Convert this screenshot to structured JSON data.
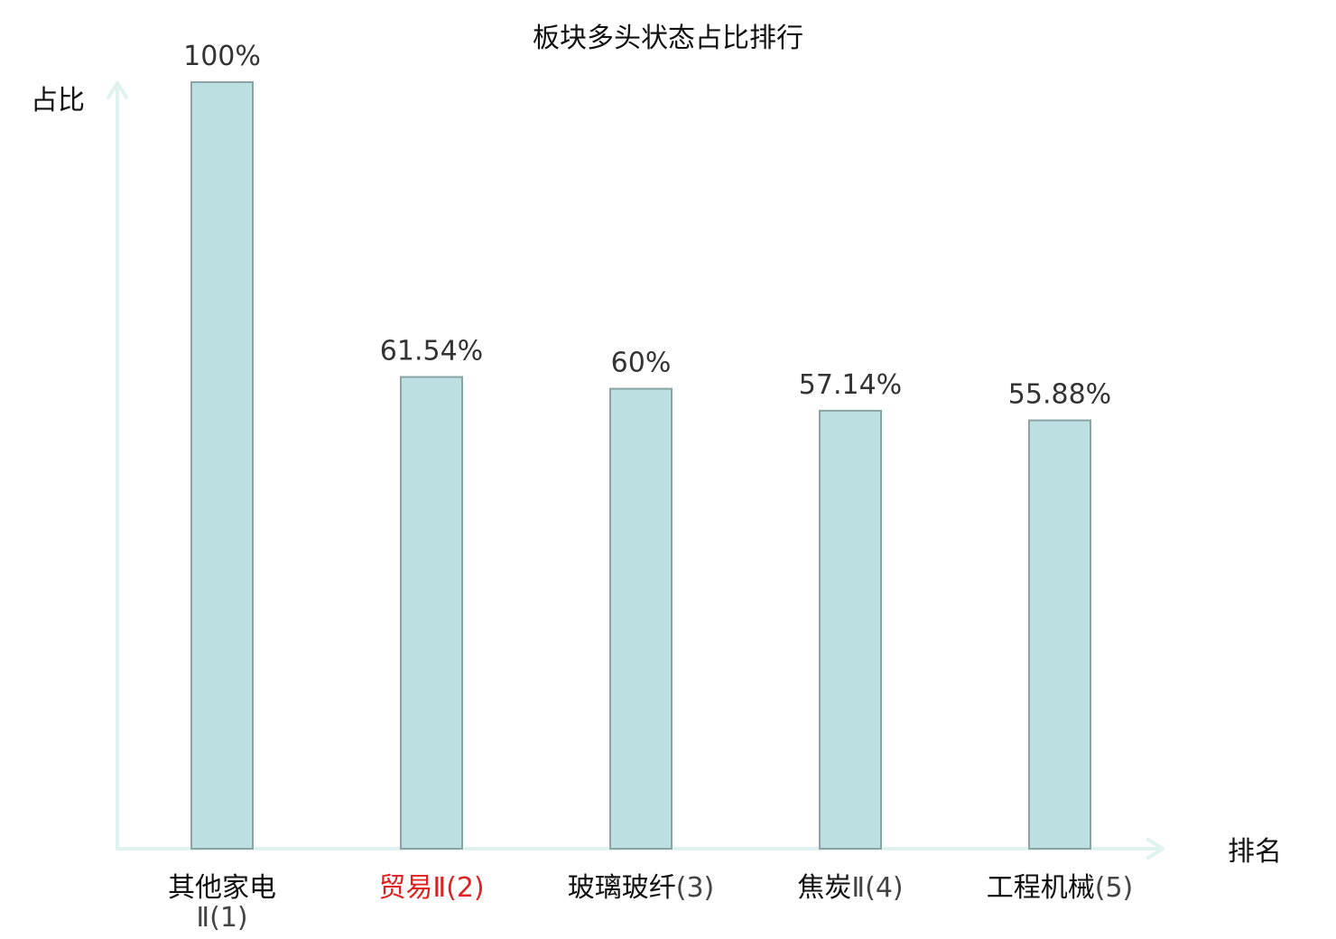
{
  "chart_data": {
    "type": "bar",
    "title": "板块多头状态占比排行",
    "ylabel": "占比",
    "xlabel": "排名",
    "ylim": [
      0,
      100
    ],
    "grid": false,
    "categories": [
      "其他家电Ⅱ(1)",
      "贸易Ⅱ(2)",
      "玻璃玻纤(3)",
      "焦炭Ⅱ(4)",
      "工程机械(5)"
    ],
    "values": [
      100,
      61.54,
      60,
      57.14,
      55.88
    ],
    "value_labels": [
      "100%",
      "61.54%",
      "60%",
      "57.14%",
      "55.88%"
    ],
    "highlight_index": 1,
    "colors": {
      "bar_fill": "#bce0e1",
      "bar_stroke": "#8aa3a4",
      "axis": "#dff2ef",
      "highlight_text": "#e02020"
    }
  }
}
